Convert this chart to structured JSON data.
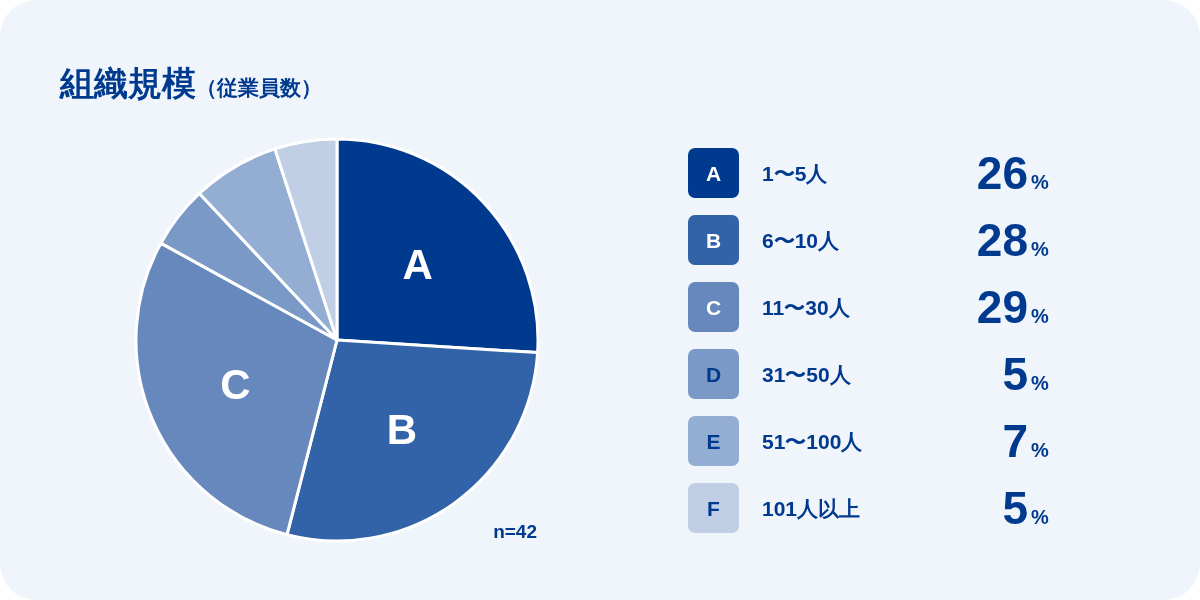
{
  "chart_data": {
    "type": "pie",
    "title": "組織規模",
    "subtitle": "（従業員数）",
    "categories": [
      "1〜5人",
      "6〜10人",
      "11〜30人",
      "31〜50人",
      "51〜100人",
      "101人以上"
    ],
    "values": [
      26,
      28,
      29,
      5,
      7,
      5
    ],
    "colors": [
      "#003a8f",
      "#3262a8",
      "#6688bd",
      "#7b99c7",
      "#93add3",
      "#c0cfe5"
    ],
    "value_labels": [
      "26%",
      "28%",
      "29%",
      "5%",
      "7%",
      "5%"
    ],
    "annotations": [
      {
        "text": "A",
        "x": "1〜5人"
      },
      {
        "text": "B",
        "x": "6〜10人"
      },
      {
        "text": "C",
        "x": "11〜30人"
      },
      {
        "text": "D",
        "x": "31〜50人"
      },
      {
        "text": "E",
        "x": "51〜100人"
      },
      {
        "text": "F",
        "x": "101人以上"
      },
      "n=42"
    ],
    "legend": "right"
  }
}
